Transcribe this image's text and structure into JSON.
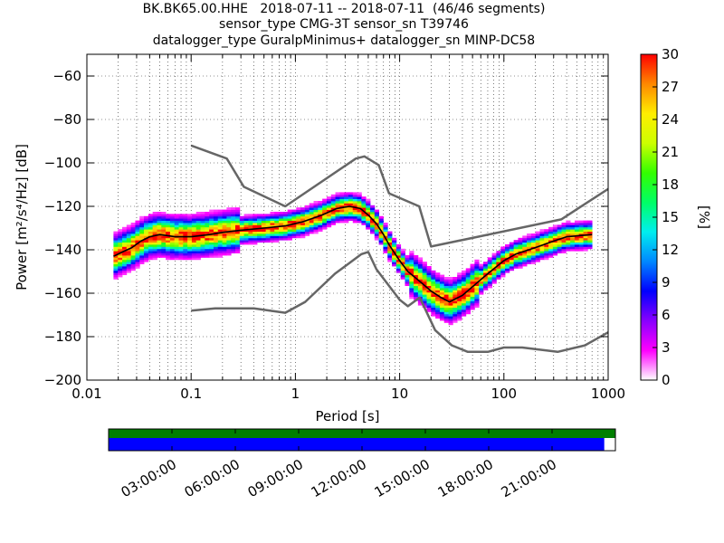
{
  "title": {
    "line1": "BK.BK65.00.HHE   2018-07-11 -- 2018-07-11  (46/46 segments)",
    "line2": "sensor_type CMG-3T sensor_sn T39746",
    "line3": "datalogger_type GuralpMinimus+ datalogger_sn MINP-DC58"
  },
  "chart_data": {
    "type": "heatmap",
    "xlabel": "Period [s]",
    "ylabel": "Power [m²/s⁴/Hz] [dB]",
    "xscale": "log",
    "xlim": [
      0.01,
      1000
    ],
    "ylim": [
      -200,
      -50
    ],
    "xticks": [
      {
        "value": 0.01,
        "label": "0.01"
      },
      {
        "value": 0.1,
        "label": "0.1"
      },
      {
        "value": 1,
        "label": "1"
      },
      {
        "value": 10,
        "label": "10"
      },
      {
        "value": 100,
        "label": "100"
      },
      {
        "value": 1000,
        "label": "1000"
      }
    ],
    "yticks": [
      {
        "value": -60,
        "label": "−60"
      },
      {
        "value": -80,
        "label": "−80"
      },
      {
        "value": -100,
        "label": "−100"
      },
      {
        "value": -120,
        "label": "−120"
      },
      {
        "value": -140,
        "label": "−140"
      },
      {
        "value": -160,
        "label": "−160"
      },
      {
        "value": -180,
        "label": "−180"
      },
      {
        "value": -200,
        "label": "−200"
      }
    ],
    "grid": true,
    "colorbar": {
      "label": "[%]",
      "range": [
        0,
        30
      ],
      "ticks": [
        {
          "value": 0,
          "label": "0"
        },
        {
          "value": 3,
          "label": "3"
        },
        {
          "value": 6,
          "label": "6"
        },
        {
          "value": 9,
          "label": "9"
        },
        {
          "value": 12,
          "label": "12"
        },
        {
          "value": 15,
          "label": "15"
        },
        {
          "value": 18,
          "label": "18"
        },
        {
          "value": 21,
          "label": "21"
        },
        {
          "value": 24,
          "label": "24"
        },
        {
          "value": 27,
          "label": "27"
        },
        {
          "value": 30,
          "label": "30"
        }
      ],
      "colors": [
        "#ffffff",
        "#ff00ff",
        "#8800ff",
        "#0000ff",
        "#0088ff",
        "#00eeee",
        "#00ff66",
        "#33ff00",
        "#ccff00",
        "#ffee00",
        "#ff8800",
        "#ff0000"
      ]
    },
    "mode_curve": [
      [
        0.018,
        -143
      ],
      [
        0.022,
        -141
      ],
      [
        0.027,
        -139
      ],
      [
        0.033,
        -136
      ],
      [
        0.04,
        -134
      ],
      [
        0.05,
        -133
      ],
      [
        0.07,
        -134
      ],
      [
        0.1,
        -134
      ],
      [
        0.15,
        -133
      ],
      [
        0.2,
        -132
      ],
      [
        0.3,
        -131
      ],
      [
        0.5,
        -130
      ],
      [
        0.8,
        -129
      ],
      [
        1.2,
        -127
      ],
      [
        1.8,
        -124
      ],
      [
        2.5,
        -121
      ],
      [
        3.3,
        -120
      ],
      [
        4.2,
        -121
      ],
      [
        5.0,
        -124
      ],
      [
        6.0,
        -128
      ],
      [
        7.0,
        -133
      ],
      [
        8.0,
        -138
      ],
      [
        10.0,
        -145
      ],
      [
        12.0,
        -150
      ],
      [
        16.0,
        -155
      ],
      [
        20.0,
        -159
      ],
      [
        25.0,
        -162
      ],
      [
        30.0,
        -164
      ],
      [
        40.0,
        -161
      ],
      [
        50.0,
        -157
      ],
      [
        70.0,
        -151
      ],
      [
        100.0,
        -145
      ],
      [
        130.0,
        -142
      ],
      [
        200.0,
        -139
      ],
      [
        300.0,
        -136
      ],
      [
        400.0,
        -134
      ],
      [
        700.0,
        -133
      ]
    ],
    "nhnm": [
      [
        0.1,
        -92
      ],
      [
        0.22,
        -98
      ],
      [
        0.32,
        -111
      ],
      [
        0.8,
        -120
      ],
      [
        3.8,
        -98
      ],
      [
        4.6,
        -97
      ],
      [
        6.3,
        -101
      ],
      [
        7.9,
        -114
      ],
      [
        15.4,
        -120
      ],
      [
        20.0,
        -138.5
      ],
      [
        354.8,
        -126
      ],
      [
        1000.0,
        -112
      ]
    ],
    "nlnm": [
      [
        0.1,
        -168
      ],
      [
        0.17,
        -167
      ],
      [
        0.4,
        -167
      ],
      [
        0.8,
        -169
      ],
      [
        1.24,
        -164
      ],
      [
        2.4,
        -151
      ],
      [
        4.3,
        -142
      ],
      [
        5.0,
        -141
      ],
      [
        6.0,
        -149
      ],
      [
        10.0,
        -163
      ],
      [
        12.0,
        -166
      ],
      [
        15.6,
        -162
      ],
      [
        21.9,
        -177
      ],
      [
        31.6,
        -184
      ],
      [
        45.0,
        -187
      ],
      [
        70.0,
        -187
      ],
      [
        100.0,
        -185
      ],
      [
        150.0,
        -185
      ],
      [
        328.0,
        -187
      ],
      [
        600.0,
        -184
      ],
      [
        1000.0,
        -178
      ]
    ],
    "timeline": {
      "ticks": [
        "03:00:00",
        "06:00:00",
        "09:00:00",
        "12:00:00",
        "15:00:00",
        "18:00:00",
        "21:00:00"
      ],
      "data_coverage_fraction": 1.0,
      "psd_coverage_fraction": 0.978,
      "data_color": "#007f00",
      "psd_color": "#0000ff"
    }
  }
}
